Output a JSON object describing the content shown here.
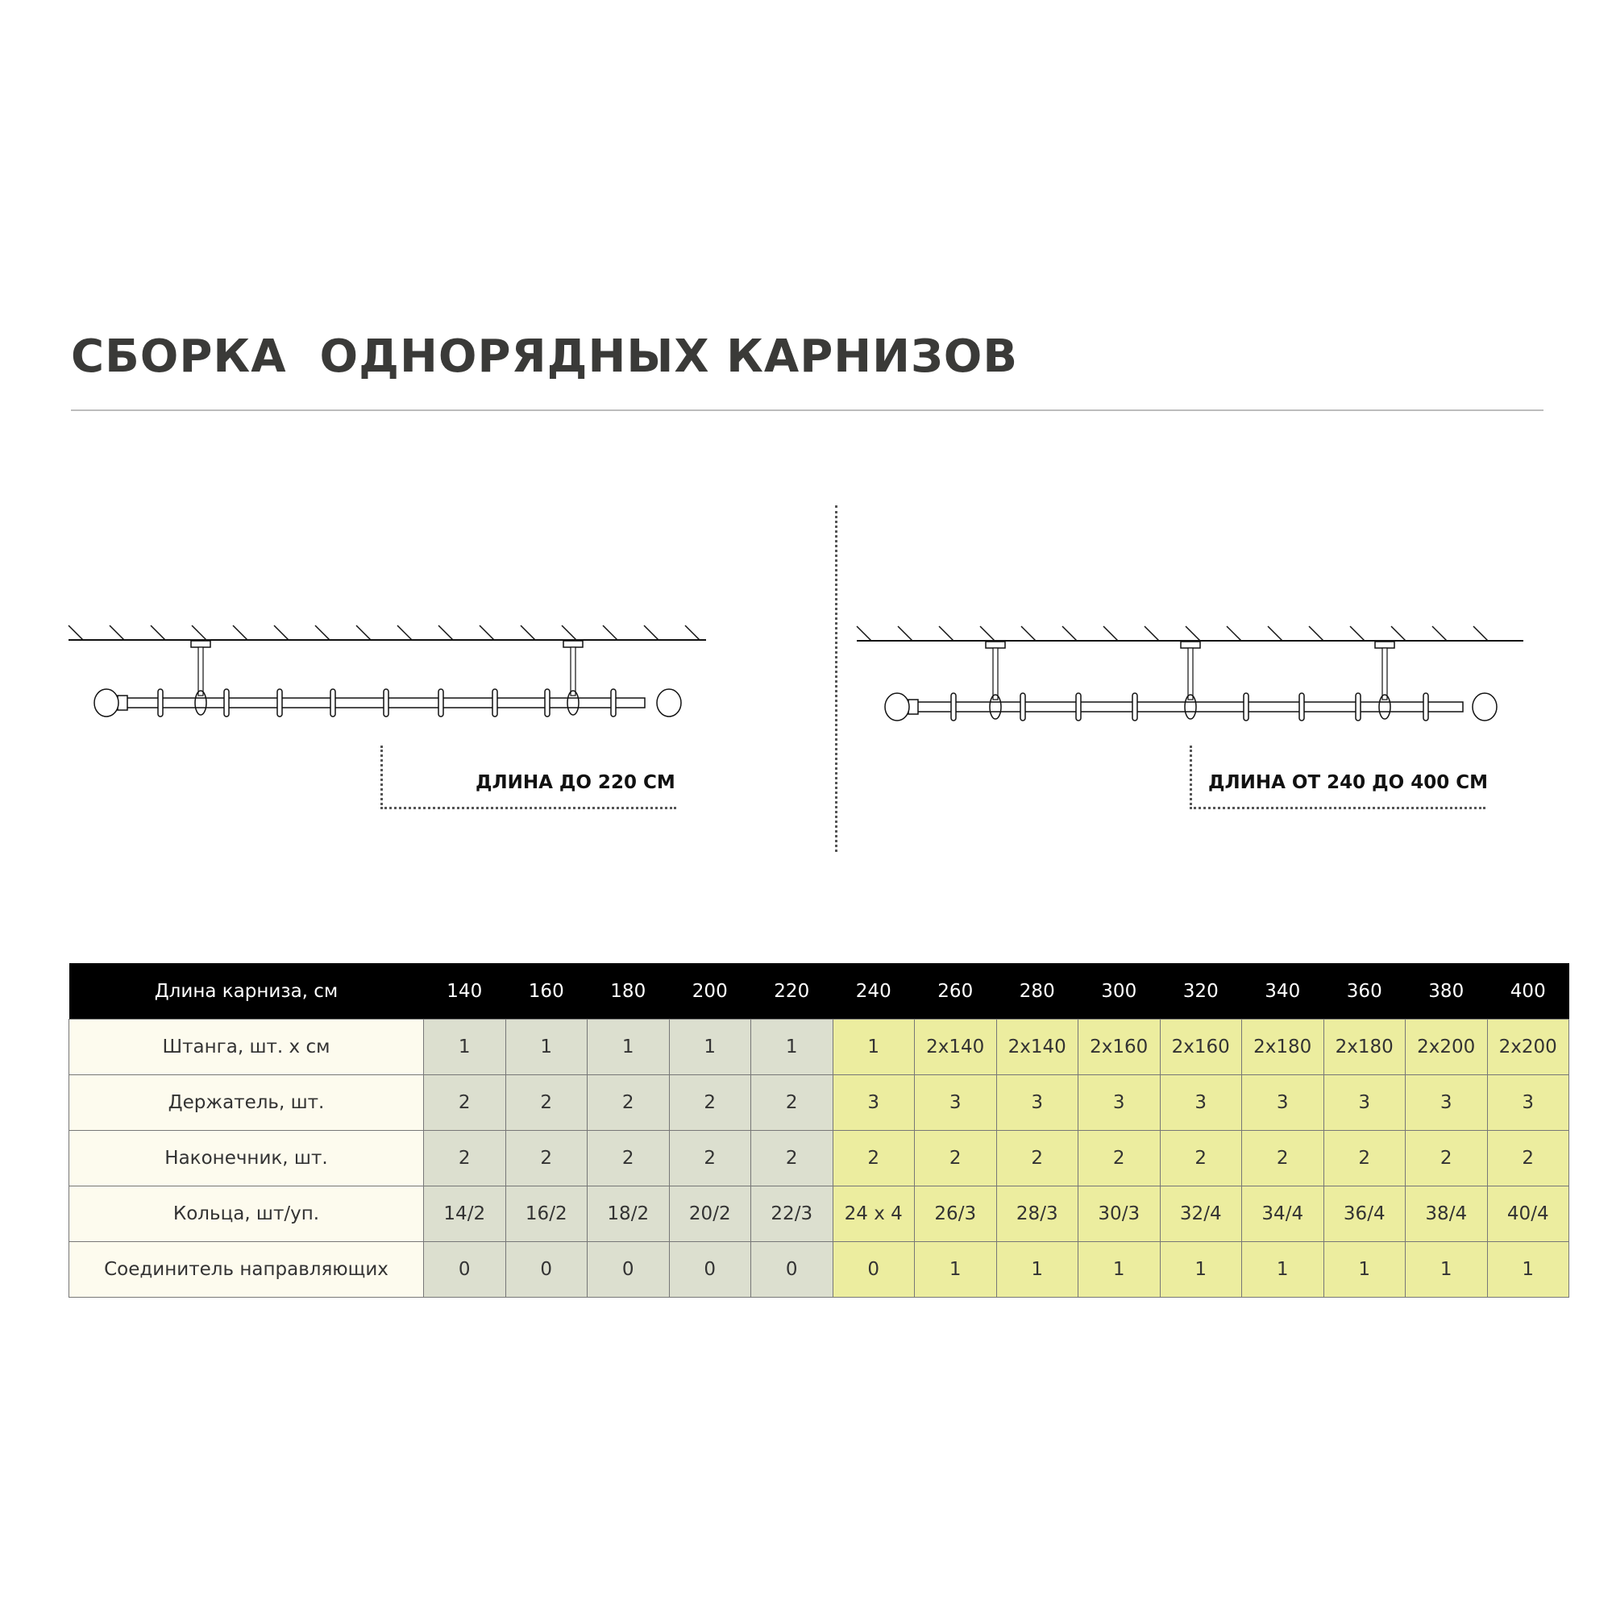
{
  "title": "СБОРКА  ОДНОРЯДНЫХ КАРНИЗОВ",
  "diagrams": [
    {
      "label": "ДЛИНА ДО 220 СМ",
      "holders": 2
    },
    {
      "label": "ДЛИНА ОТ 240 ДО 400 СМ",
      "holders": 3
    }
  ],
  "colors": {
    "header_bg": "#000000",
    "row_header_bg": "#fdfbee",
    "short_bg": "#dcdfcf",
    "long_bg": "#eced9f"
  },
  "table": {
    "header": "Длина карниза, см",
    "lengths": [
      "140",
      "160",
      "180",
      "200",
      "220",
      "240",
      "260",
      "280",
      "300",
      "320",
      "340",
      "360",
      "380",
      "400"
    ],
    "rows": [
      {
        "label": "Штанга, шт. х см",
        "values": [
          "1",
          "1",
          "1",
          "1",
          "1",
          "1",
          "2x140",
          "2x140",
          "2x160",
          "2x160",
          "2x180",
          "2x180",
          "2x200",
          "2x200"
        ]
      },
      {
        "label": "Держатель, шт.",
        "values": [
          "2",
          "2",
          "2",
          "2",
          "2",
          "3",
          "3",
          "3",
          "3",
          "3",
          "3",
          "3",
          "3",
          "3"
        ]
      },
      {
        "label": "Наконечник, шт.",
        "values": [
          "2",
          "2",
          "2",
          "2",
          "2",
          "2",
          "2",
          "2",
          "2",
          "2",
          "2",
          "2",
          "2",
          "2"
        ]
      },
      {
        "label": "Кольца, шт/уп.",
        "values": [
          "14/2",
          "16/2",
          "18/2",
          "20/2",
          "22/3",
          "24 x 4",
          "26/3",
          "28/3",
          "30/3",
          "32/4",
          "34/4",
          "36/4",
          "38/4",
          "40/4"
        ]
      },
      {
        "label": "Соединитель направляющих",
        "values": [
          "0",
          "0",
          "0",
          "0",
          "0",
          "0",
          "1",
          "1",
          "1",
          "1",
          "1",
          "1",
          "1",
          "1"
        ]
      }
    ]
  }
}
